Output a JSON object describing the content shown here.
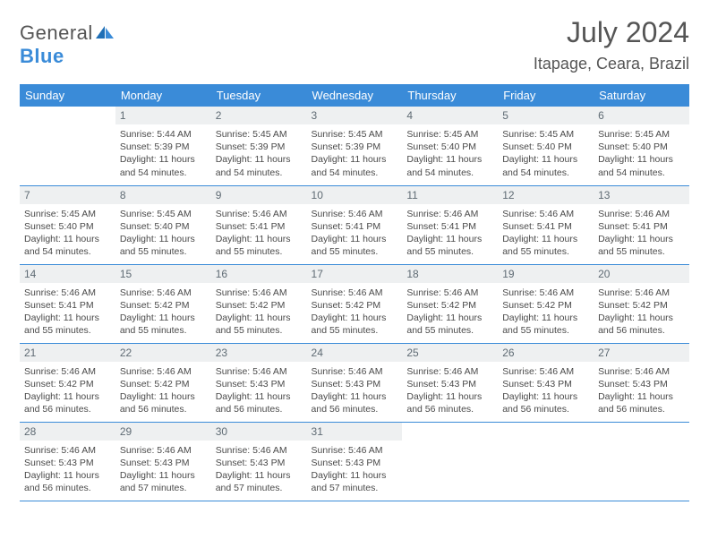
{
  "brand": {
    "part1": "General",
    "part2": "Blue"
  },
  "title": "July 2024",
  "location": "Itapage, Ceara, Brazil",
  "colors": {
    "header_bg": "#3a8bd8",
    "header_fg": "#ffffff",
    "daynum_bg": "#eef0f1",
    "daynum_fg": "#5f6b74",
    "body_text": "#4a4a4a",
    "border": "#3a8bd8",
    "page_bg": "#ffffff",
    "title_color": "#555555"
  },
  "fonts": {
    "month_title_pt": 32,
    "location_pt": 18,
    "weekday_pt": 13,
    "daynum_pt": 12,
    "body_pt": 10.5
  },
  "weekdays": [
    "Sunday",
    "Monday",
    "Tuesday",
    "Wednesday",
    "Thursday",
    "Friday",
    "Saturday"
  ],
  "weeks": [
    [
      {
        "num": "",
        "sunrise": "",
        "sunset": "",
        "daylight": ""
      },
      {
        "num": "1",
        "sunrise": "Sunrise: 5:44 AM",
        "sunset": "Sunset: 5:39 PM",
        "daylight": "Daylight: 11 hours and 54 minutes."
      },
      {
        "num": "2",
        "sunrise": "Sunrise: 5:45 AM",
        "sunset": "Sunset: 5:39 PM",
        "daylight": "Daylight: 11 hours and 54 minutes."
      },
      {
        "num": "3",
        "sunrise": "Sunrise: 5:45 AM",
        "sunset": "Sunset: 5:39 PM",
        "daylight": "Daylight: 11 hours and 54 minutes."
      },
      {
        "num": "4",
        "sunrise": "Sunrise: 5:45 AM",
        "sunset": "Sunset: 5:40 PM",
        "daylight": "Daylight: 11 hours and 54 minutes."
      },
      {
        "num": "5",
        "sunrise": "Sunrise: 5:45 AM",
        "sunset": "Sunset: 5:40 PM",
        "daylight": "Daylight: 11 hours and 54 minutes."
      },
      {
        "num": "6",
        "sunrise": "Sunrise: 5:45 AM",
        "sunset": "Sunset: 5:40 PM",
        "daylight": "Daylight: 11 hours and 54 minutes."
      }
    ],
    [
      {
        "num": "7",
        "sunrise": "Sunrise: 5:45 AM",
        "sunset": "Sunset: 5:40 PM",
        "daylight": "Daylight: 11 hours and 54 minutes."
      },
      {
        "num": "8",
        "sunrise": "Sunrise: 5:45 AM",
        "sunset": "Sunset: 5:40 PM",
        "daylight": "Daylight: 11 hours and 55 minutes."
      },
      {
        "num": "9",
        "sunrise": "Sunrise: 5:46 AM",
        "sunset": "Sunset: 5:41 PM",
        "daylight": "Daylight: 11 hours and 55 minutes."
      },
      {
        "num": "10",
        "sunrise": "Sunrise: 5:46 AM",
        "sunset": "Sunset: 5:41 PM",
        "daylight": "Daylight: 11 hours and 55 minutes."
      },
      {
        "num": "11",
        "sunrise": "Sunrise: 5:46 AM",
        "sunset": "Sunset: 5:41 PM",
        "daylight": "Daylight: 11 hours and 55 minutes."
      },
      {
        "num": "12",
        "sunrise": "Sunrise: 5:46 AM",
        "sunset": "Sunset: 5:41 PM",
        "daylight": "Daylight: 11 hours and 55 minutes."
      },
      {
        "num": "13",
        "sunrise": "Sunrise: 5:46 AM",
        "sunset": "Sunset: 5:41 PM",
        "daylight": "Daylight: 11 hours and 55 minutes."
      }
    ],
    [
      {
        "num": "14",
        "sunrise": "Sunrise: 5:46 AM",
        "sunset": "Sunset: 5:41 PM",
        "daylight": "Daylight: 11 hours and 55 minutes."
      },
      {
        "num": "15",
        "sunrise": "Sunrise: 5:46 AM",
        "sunset": "Sunset: 5:42 PM",
        "daylight": "Daylight: 11 hours and 55 minutes."
      },
      {
        "num": "16",
        "sunrise": "Sunrise: 5:46 AM",
        "sunset": "Sunset: 5:42 PM",
        "daylight": "Daylight: 11 hours and 55 minutes."
      },
      {
        "num": "17",
        "sunrise": "Sunrise: 5:46 AM",
        "sunset": "Sunset: 5:42 PM",
        "daylight": "Daylight: 11 hours and 55 minutes."
      },
      {
        "num": "18",
        "sunrise": "Sunrise: 5:46 AM",
        "sunset": "Sunset: 5:42 PM",
        "daylight": "Daylight: 11 hours and 55 minutes."
      },
      {
        "num": "19",
        "sunrise": "Sunrise: 5:46 AM",
        "sunset": "Sunset: 5:42 PM",
        "daylight": "Daylight: 11 hours and 55 minutes."
      },
      {
        "num": "20",
        "sunrise": "Sunrise: 5:46 AM",
        "sunset": "Sunset: 5:42 PM",
        "daylight": "Daylight: 11 hours and 56 minutes."
      }
    ],
    [
      {
        "num": "21",
        "sunrise": "Sunrise: 5:46 AM",
        "sunset": "Sunset: 5:42 PM",
        "daylight": "Daylight: 11 hours and 56 minutes."
      },
      {
        "num": "22",
        "sunrise": "Sunrise: 5:46 AM",
        "sunset": "Sunset: 5:42 PM",
        "daylight": "Daylight: 11 hours and 56 minutes."
      },
      {
        "num": "23",
        "sunrise": "Sunrise: 5:46 AM",
        "sunset": "Sunset: 5:43 PM",
        "daylight": "Daylight: 11 hours and 56 minutes."
      },
      {
        "num": "24",
        "sunrise": "Sunrise: 5:46 AM",
        "sunset": "Sunset: 5:43 PM",
        "daylight": "Daylight: 11 hours and 56 minutes."
      },
      {
        "num": "25",
        "sunrise": "Sunrise: 5:46 AM",
        "sunset": "Sunset: 5:43 PM",
        "daylight": "Daylight: 11 hours and 56 minutes."
      },
      {
        "num": "26",
        "sunrise": "Sunrise: 5:46 AM",
        "sunset": "Sunset: 5:43 PM",
        "daylight": "Daylight: 11 hours and 56 minutes."
      },
      {
        "num": "27",
        "sunrise": "Sunrise: 5:46 AM",
        "sunset": "Sunset: 5:43 PM",
        "daylight": "Daylight: 11 hours and 56 minutes."
      }
    ],
    [
      {
        "num": "28",
        "sunrise": "Sunrise: 5:46 AM",
        "sunset": "Sunset: 5:43 PM",
        "daylight": "Daylight: 11 hours and 56 minutes."
      },
      {
        "num": "29",
        "sunrise": "Sunrise: 5:46 AM",
        "sunset": "Sunset: 5:43 PM",
        "daylight": "Daylight: 11 hours and 57 minutes."
      },
      {
        "num": "30",
        "sunrise": "Sunrise: 5:46 AM",
        "sunset": "Sunset: 5:43 PM",
        "daylight": "Daylight: 11 hours and 57 minutes."
      },
      {
        "num": "31",
        "sunrise": "Sunrise: 5:46 AM",
        "sunset": "Sunset: 5:43 PM",
        "daylight": "Daylight: 11 hours and 57 minutes."
      },
      {
        "num": "",
        "sunrise": "",
        "sunset": "",
        "daylight": ""
      },
      {
        "num": "",
        "sunrise": "",
        "sunset": "",
        "daylight": ""
      },
      {
        "num": "",
        "sunrise": "",
        "sunset": "",
        "daylight": ""
      }
    ]
  ]
}
